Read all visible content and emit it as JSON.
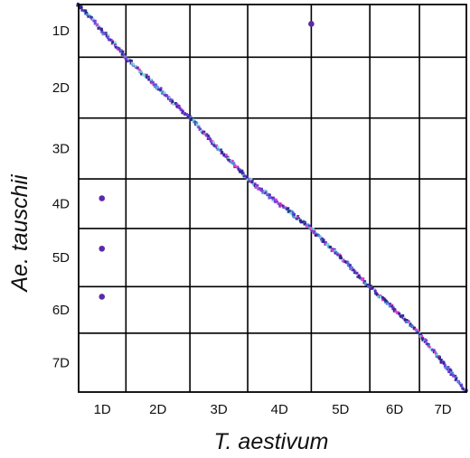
{
  "chart_data": {
    "type": "scatter",
    "xlabel": "T. aestivum",
    "ylabel": "Ae. tauschii",
    "x_categories": [
      "1D",
      "2D",
      "3D",
      "4D",
      "5D",
      "6D",
      "7D"
    ],
    "y_categories": [
      "1D",
      "2D",
      "3D",
      "4D",
      "5D",
      "6D",
      "7D"
    ],
    "x_boundaries": [
      0,
      0.122,
      0.287,
      0.436,
      0.6,
      0.751,
      0.879,
      1.0
    ],
    "y_boundaries": [
      0,
      0.136,
      0.293,
      0.45,
      0.578,
      0.728,
      0.848,
      1.0
    ],
    "grid": true,
    "colors": [
      "#3b1f99",
      "#5a2fc0",
      "#7b3fe0",
      "#e040c8",
      "#4a8fd8",
      "#7fdcd8",
      "#2a2a80"
    ],
    "diagonal_density": 650,
    "off_diagonal_points": [
      {
        "x": 0.6,
        "y": 0.05
      },
      {
        "x": 0.06,
        "y": 0.5
      },
      {
        "x": 0.06,
        "y": 0.63
      },
      {
        "x": 0.06,
        "y": 0.754
      }
    ]
  }
}
